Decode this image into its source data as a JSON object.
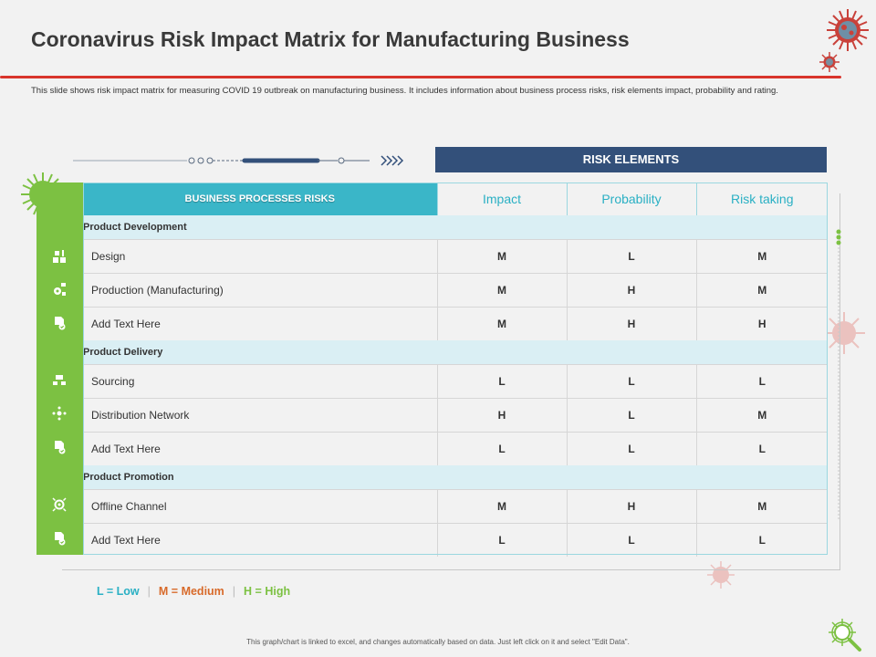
{
  "title": "Coronavirus Risk Impact Matrix for Manufacturing Business",
  "subtitle": "This slide shows risk impact matrix for measuring COVID  19 outbreak on manufacturing business. It includes information about business process risks, risk elements impact, probability and rating.",
  "risk_elements_header": "RISK ELEMENTS",
  "table": {
    "business_processes_header": "BUSINESS PROCESSES RISKS",
    "columns": [
      "Impact",
      "Probability",
      "Risk taking"
    ],
    "groups": [
      {
        "name": "Product Development",
        "rows": [
          {
            "icon": "design-icon",
            "label": "Design",
            "values": [
              "M",
              "L",
              "M"
            ]
          },
          {
            "icon": "gear-flow-icon",
            "label": "Production (Manufacturing)",
            "values": [
              "M",
              "H",
              "M"
            ]
          },
          {
            "icon": "document-check-icon",
            "label": "Add Text Here",
            "values": [
              "M",
              "H",
              "H"
            ]
          }
        ]
      },
      {
        "name": "Product Delivery",
        "rows": [
          {
            "icon": "delivery-truck-icon",
            "label": "Sourcing",
            "values": [
              "L",
              "L",
              "L"
            ]
          },
          {
            "icon": "network-icon",
            "label": "Distribution Network",
            "values": [
              "H",
              "L",
              "M"
            ]
          },
          {
            "icon": "document-check-icon",
            "label": "Add Text Here",
            "values": [
              "L",
              "L",
              "L"
            ]
          }
        ]
      },
      {
        "name": "Product Promotion",
        "rows": [
          {
            "icon": "target-icon",
            "label": "Offline Channel",
            "values": [
              "M",
              "H",
              "M"
            ]
          },
          {
            "icon": "document-check-icon",
            "label": "Add Text Here",
            "values": [
              "L",
              "L",
              "L"
            ]
          }
        ]
      }
    ]
  },
  "legend": {
    "low": "L = Low",
    "separator": "|",
    "medium": "M = Medium",
    "high": "H = High"
  },
  "footer": "This graph/chart is linked to excel, and changes automatically based on data. Just left click on it and select \"Edit Data\".",
  "colors": {
    "accent_red": "#d9352c",
    "header_navy": "#33507a",
    "header_teal": "#3ab6c8",
    "green_bar": "#7cc142",
    "group_band": "#daeff4"
  }
}
